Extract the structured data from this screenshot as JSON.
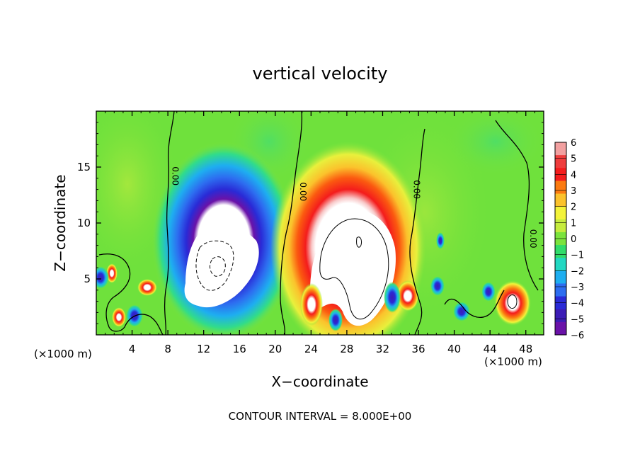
{
  "chart_data": {
    "type": "heatmap",
    "title": "vertical velocity",
    "xlabel": "X−coordinate",
    "ylabel": "Z−coordinate",
    "x_unit_left": "(×1000 m)",
    "x_unit_right": "(×1000 m)",
    "xlim": [
      0,
      50
    ],
    "ylim": [
      0,
      20
    ],
    "x_ticks": [
      4,
      8,
      12,
      16,
      20,
      24,
      28,
      32,
      36,
      40,
      44,
      48
    ],
    "x_tick_labels": [
      "4",
      "8",
      "12",
      "16",
      "20",
      "24",
      "28",
      "32",
      "36",
      "40",
      "44",
      "48"
    ],
    "y_ticks": [
      5,
      10,
      15
    ],
    "y_tick_labels": [
      "5",
      "10",
      "15"
    ],
    "footer": "CONTOUR INTERVAL = 8.000E+00",
    "contour_labels": [
      {
        "text": "0.00",
        "x": 8.5,
        "z": 14.2
      },
      {
        "text": "0.00",
        "x": 22.8,
        "z": 12.8
      },
      {
        "text": "0.00",
        "x": 35.5,
        "z": 13.0
      },
      {
        "text": "0.00",
        "x": 48.5,
        "z": 8.6
      }
    ],
    "colorbar": {
      "min": -6,
      "max": 6,
      "labels": [
        "6",
        "5",
        "4",
        "3",
        "2",
        "1",
        "0",
        "−1",
        "−2",
        "−3",
        "−4",
        "−5",
        "−6"
      ],
      "colors": [
        "#f2a0a0",
        "#ee3d3d",
        "#f41c1c",
        "#fb7a10",
        "#fbc22c",
        "#f3f33a",
        "#c6ec3e",
        "#7be33d",
        "#31dc6a",
        "#22d8c2",
        "#1eaef0",
        "#2d6df0",
        "#2a2ad6",
        "#3c1cb6",
        "#6a12a8"
      ]
    },
    "features": [
      {
        "kind": "updraft",
        "x": 28.5,
        "z": 8.0,
        "peak_above_scale": true
      },
      {
        "kind": "downdraft",
        "x": 14.5,
        "z": 6.5,
        "peak_below_scale": true
      },
      {
        "kind": "updraft",
        "x": 46.5,
        "z": 2.8,
        "peak_above_scale": true
      }
    ]
  }
}
